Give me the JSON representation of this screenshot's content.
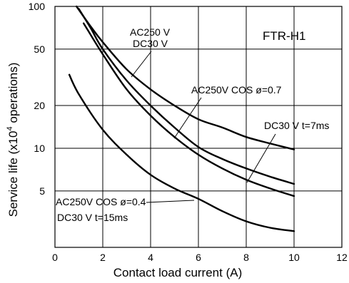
{
  "chart_data": {
    "type": "line",
    "title": "FTR-H1",
    "xlabel": "Contact load current (A)",
    "ylabel_main": "Service life (x10",
    "ylabel_sup": "4",
    "ylabel_tail": " operations)",
    "x_ticks": [
      "0",
      "2",
      "4",
      "6",
      "8",
      "10",
      "12"
    ],
    "y_ticks": [
      "5",
      "10",
      "20",
      "50",
      "100"
    ],
    "x_range": [
      0,
      12
    ],
    "y_range": [
      2,
      100
    ],
    "y_scale": "log",
    "grid": true,
    "series": [
      {
        "name": "AC250 V DC30 V",
        "points": [
          [
            0.9,
            100
          ],
          [
            1.5,
            72
          ],
          [
            2,
            56
          ],
          [
            3,
            36
          ],
          [
            4,
            26
          ],
          [
            5,
            20
          ],
          [
            6,
            16
          ],
          [
            7,
            14
          ],
          [
            8,
            12
          ],
          [
            9,
            10.8
          ],
          [
            10,
            9.8
          ]
        ]
      },
      {
        "name": "AC250V COS ø=0.7",
        "points": [
          [
            1.0,
            96
          ],
          [
            1.5,
            70
          ],
          [
            2,
            50
          ],
          [
            3,
            30
          ],
          [
            4,
            20
          ],
          [
            5,
            14
          ],
          [
            6,
            10.2
          ],
          [
            7,
            8.4
          ],
          [
            8,
            7.2
          ],
          [
            9,
            6.3
          ],
          [
            10,
            5.6
          ]
        ]
      },
      {
        "name": "DC30 V t=7ms",
        "points": [
          [
            1.2,
            76
          ],
          [
            2,
            46
          ],
          [
            3,
            26
          ],
          [
            4,
            17
          ],
          [
            5,
            12
          ],
          [
            6,
            9
          ],
          [
            7,
            7.2
          ],
          [
            8,
            6
          ],
          [
            9,
            5.2
          ],
          [
            10,
            4.6
          ]
        ]
      },
      {
        "name": "AC250V COS ø=0.4 DC30 V t=15ms",
        "points": [
          [
            0.6,
            33
          ],
          [
            1,
            24
          ],
          [
            2,
            13.5
          ],
          [
            3,
            9
          ],
          [
            4,
            6.5
          ],
          [
            5,
            5.2
          ],
          [
            6,
            4.4
          ],
          [
            7,
            3.6
          ],
          [
            8,
            3.05
          ],
          [
            9,
            2.75
          ],
          [
            10,
            2.6
          ]
        ]
      }
    ],
    "annotations": [
      {
        "lines": [
          "AC250 V",
          "DC30 V"
        ],
        "target_series": 0
      },
      {
        "lines": [
          "AC250V COS ø=0.7"
        ],
        "target_series": 1
      },
      {
        "lines": [
          "DC30 V t=7ms"
        ],
        "target_series": 2
      },
      {
        "lines": [
          "AC250V COS ø=0.4",
          "DC30 V t=15ms"
        ],
        "target_series": 3
      }
    ]
  }
}
